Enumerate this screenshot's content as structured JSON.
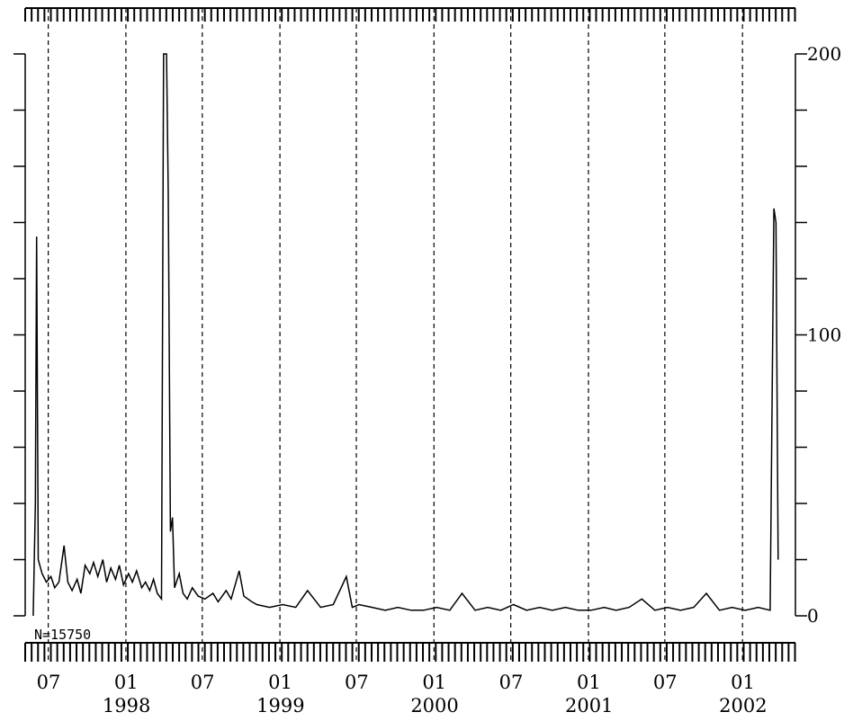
{
  "chart_data": {
    "type": "line",
    "title": "",
    "xlabel": "",
    "ylabel": "",
    "annotation": "N=15750",
    "x_start": "1997-05",
    "x_end": "2002-04",
    "ylim": [
      0,
      200
    ],
    "y_ticks": [
      {
        "value": 0,
        "label": "0"
      },
      {
        "value": 100,
        "label": "100"
      },
      {
        "value": 200,
        "label": "200"
      }
    ],
    "x_tick_labels": [
      {
        "date": "1997-07",
        "month": "07",
        "year": ""
      },
      {
        "date": "1998-01",
        "month": "01",
        "year": "1998"
      },
      {
        "date": "1998-07",
        "month": "07",
        "year": ""
      },
      {
        "date": "1999-01",
        "month": "01",
        "year": "1999"
      },
      {
        "date": "1999-07",
        "month": "07",
        "year": ""
      },
      {
        "date": "2000-01",
        "month": "01",
        "year": "2000"
      },
      {
        "date": "2000-07",
        "month": "07",
        "year": ""
      },
      {
        "date": "2001-01",
        "month": "01",
        "year": "2001"
      },
      {
        "date": "2001-07",
        "month": "07",
        "year": ""
      },
      {
        "date": "2002-01",
        "month": "01",
        "year": "2002"
      }
    ],
    "series": [
      {
        "name": "",
        "color": "#000000",
        "points": [
          [
            "1997-05-20",
            0
          ],
          [
            "1997-05-25",
            40
          ],
          [
            "1997-05-28",
            135
          ],
          [
            "1997-06-01",
            20
          ],
          [
            "1997-06-10",
            15
          ],
          [
            "1997-06-20",
            12
          ],
          [
            "1997-07-01",
            14
          ],
          [
            "1997-07-10",
            10
          ],
          [
            "1997-07-20",
            12
          ],
          [
            "1997-08-01",
            25
          ],
          [
            "1997-08-10",
            12
          ],
          [
            "1997-08-20",
            9
          ],
          [
            "1997-09-01",
            13
          ],
          [
            "1997-09-10",
            8
          ],
          [
            "1997-09-20",
            18
          ],
          [
            "1997-10-01",
            15
          ],
          [
            "1997-10-10",
            19
          ],
          [
            "1997-10-20",
            14
          ],
          [
            "1997-11-01",
            20
          ],
          [
            "1997-11-10",
            12
          ],
          [
            "1997-11-20",
            17
          ],
          [
            "1997-12-01",
            13
          ],
          [
            "1997-12-10",
            18
          ],
          [
            "1997-12-20",
            11
          ],
          [
            "1998-01-01",
            15
          ],
          [
            "1998-01-10",
            12
          ],
          [
            "1998-01-20",
            16
          ],
          [
            "1998-02-01",
            10
          ],
          [
            "1998-02-10",
            12
          ],
          [
            "1998-02-20",
            9
          ],
          [
            "1998-03-01",
            13
          ],
          [
            "1998-03-10",
            8
          ],
          [
            "1998-03-20",
            6
          ],
          [
            "1998-03-25",
            200
          ],
          [
            "1998-04-01",
            200
          ],
          [
            "1998-04-05",
            150
          ],
          [
            "1998-04-10",
            30
          ],
          [
            "1998-04-15",
            35
          ],
          [
            "1998-04-20",
            10
          ],
          [
            "1998-05-01",
            15
          ],
          [
            "1998-05-10",
            8
          ],
          [
            "1998-05-20",
            6
          ],
          [
            "1998-06-01",
            10
          ],
          [
            "1998-06-15",
            7
          ],
          [
            "1998-07-01",
            6
          ],
          [
            "1998-07-20",
            8
          ],
          [
            "1998-08-01",
            5
          ],
          [
            "1998-08-20",
            9
          ],
          [
            "1998-09-01",
            6
          ],
          [
            "1998-09-20",
            16
          ],
          [
            "1998-10-01",
            7
          ],
          [
            "1998-10-20",
            5
          ],
          [
            "1998-11-01",
            4
          ],
          [
            "1998-12-01",
            3
          ],
          [
            "1999-01-01",
            4
          ],
          [
            "1999-02-01",
            3
          ],
          [
            "1999-03-01",
            9
          ],
          [
            "1999-04-01",
            3
          ],
          [
            "1999-05-01",
            4
          ],
          [
            "1999-06-01",
            14
          ],
          [
            "1999-06-15",
            3
          ],
          [
            "1999-07-01",
            4
          ],
          [
            "1999-08-01",
            3
          ],
          [
            "1999-09-01",
            2
          ],
          [
            "1999-10-01",
            3
          ],
          [
            "1999-11-01",
            2
          ],
          [
            "1999-12-01",
            2
          ],
          [
            "2000-01-01",
            3
          ],
          [
            "2000-02-01",
            2
          ],
          [
            "2000-03-01",
            8
          ],
          [
            "2000-04-01",
            2
          ],
          [
            "2000-05-01",
            3
          ],
          [
            "2000-06-01",
            2
          ],
          [
            "2000-07-01",
            4
          ],
          [
            "2000-08-01",
            2
          ],
          [
            "2000-09-01",
            3
          ],
          [
            "2000-10-01",
            2
          ],
          [
            "2000-11-01",
            3
          ],
          [
            "2000-12-01",
            2
          ],
          [
            "2001-01-01",
            2
          ],
          [
            "2001-02-01",
            3
          ],
          [
            "2001-03-01",
            2
          ],
          [
            "2001-04-01",
            3
          ],
          [
            "2001-05-01",
            6
          ],
          [
            "2001-06-01",
            2
          ],
          [
            "2001-07-01",
            3
          ],
          [
            "2001-08-01",
            2
          ],
          [
            "2001-09-01",
            3
          ],
          [
            "2001-10-01",
            8
          ],
          [
            "2001-11-01",
            2
          ],
          [
            "2001-12-01",
            3
          ],
          [
            "2002-01-01",
            2
          ],
          [
            "2002-02-01",
            3
          ],
          [
            "2002-03-01",
            2
          ],
          [
            "2002-03-10",
            145
          ],
          [
            "2002-03-15",
            140
          ],
          [
            "2002-03-20",
            20
          ]
        ]
      }
    ],
    "grid": "vertical dashed lines at each 07 and 01 tick",
    "x_axis_position": "bottom",
    "secondary_y_axis": "right"
  }
}
